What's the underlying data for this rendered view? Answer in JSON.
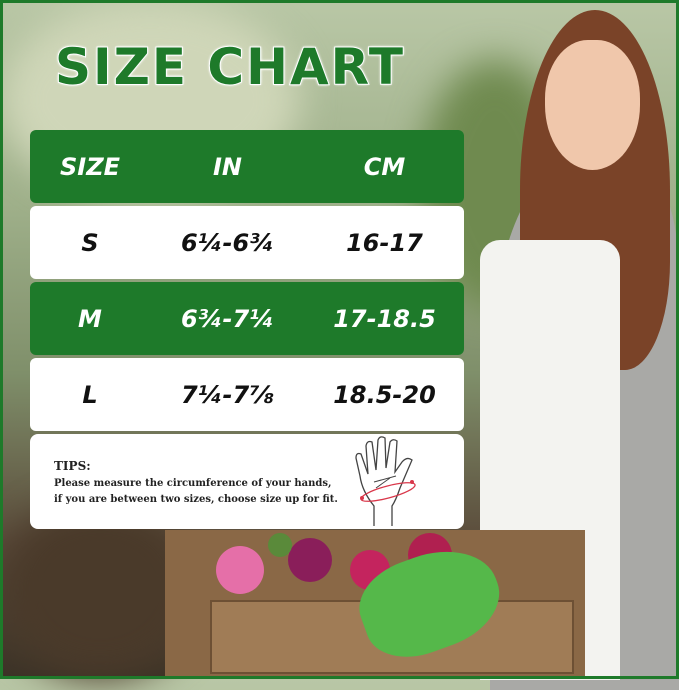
{
  "title": "SIZE CHART",
  "table": {
    "headers": [
      "SIZE",
      "IN",
      "CM"
    ],
    "rows": [
      {
        "size": "S",
        "in": "6¼-6¾",
        "cm": "16-17"
      },
      {
        "size": "M",
        "in": "6¾-7¼",
        "cm": "17-18.5"
      },
      {
        "size": "L",
        "in": "7¼-7⅞",
        "cm": "18.5-20"
      }
    ]
  },
  "tips": {
    "title": "TIPS:",
    "line1": "Please measure the circumference of your hands,",
    "line2": "if you are between two sizes, choose size up for fit."
  },
  "icons": {
    "hand": "hand-measure-icon"
  },
  "colors": {
    "accent": "#1e7a2a",
    "measure_line": "#d9374a"
  }
}
